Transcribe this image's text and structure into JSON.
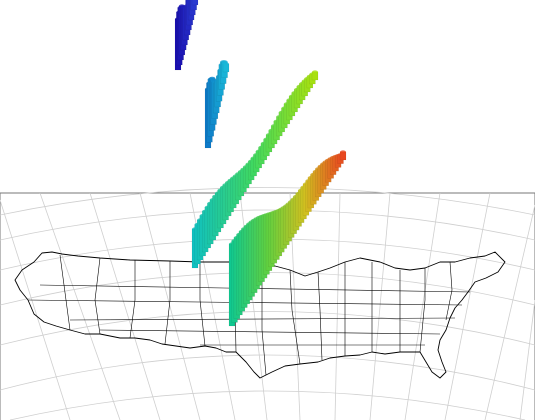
{
  "view": {
    "type": "3d-map",
    "basemap": "conterminous-united-states-state-boundaries",
    "graticule": true,
    "colormap": "jet",
    "background_color": "#ffffff",
    "map_line_color": "#000000",
    "graticule_color": "#cfcfcf"
  },
  "layers": [
    {
      "name": "track-segment-1",
      "color_range": [
        "#1a0fb0",
        "#2a3ad0"
      ]
    },
    {
      "name": "track-segment-2",
      "color_range": [
        "#0e7ac8",
        "#1ab8d8"
      ]
    },
    {
      "name": "track-segment-3",
      "color_range": [
        "#10c0c0",
        "#a8e010"
      ]
    },
    {
      "name": "track-segment-4",
      "color_range": [
        "#10c890",
        "#e84820"
      ]
    }
  ]
}
